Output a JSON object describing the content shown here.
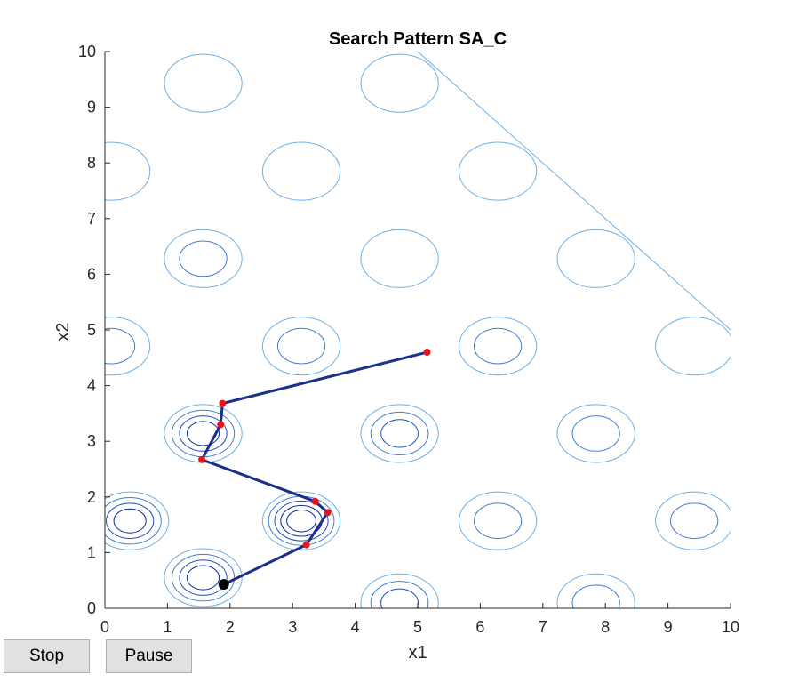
{
  "chart_data": {
    "type": "line",
    "title": "Search Pattern SA_C",
    "xlabel": "x1",
    "ylabel": "x2",
    "xlim": [
      0,
      10
    ],
    "ylim": [
      0,
      10
    ],
    "xticks": [
      "0",
      "1",
      "2",
      "3",
      "4",
      "5",
      "6",
      "7",
      "8",
      "9",
      "10"
    ],
    "yticks": [
      "0",
      "1",
      "2",
      "3",
      "4",
      "5",
      "6",
      "7",
      "8",
      "9",
      "10"
    ],
    "grid": false,
    "background_contours": {
      "colormap": [
        "#6fb0e8",
        "#3f7fd0",
        "#1f4fb4",
        "#0b2a9a"
      ],
      "minima": [
        {
          "x": 1.57,
          "y": 9.43,
          "levels": 1
        },
        {
          "x": 4.71,
          "y": 9.43,
          "levels": 1
        },
        {
          "x": 3.14,
          "y": 7.85,
          "levels": 1
        },
        {
          "x": 6.28,
          "y": 7.85,
          "levels": 1
        },
        {
          "x": 1.57,
          "y": 6.28,
          "levels": 2
        },
        {
          "x": 4.71,
          "y": 6.28,
          "levels": 1
        },
        {
          "x": 7.85,
          "y": 6.28,
          "levels": 1
        },
        {
          "x": 3.14,
          "y": 4.71,
          "levels": 2
        },
        {
          "x": 6.28,
          "y": 4.71,
          "levels": 2
        },
        {
          "x": 9.42,
          "y": 4.71,
          "levels": 1
        },
        {
          "x": 1.57,
          "y": 3.14,
          "levels": 4
        },
        {
          "x": 4.71,
          "y": 3.14,
          "levels": 3
        },
        {
          "x": 7.85,
          "y": 3.14,
          "levels": 2
        },
        {
          "x": 3.14,
          "y": 1.57,
          "levels": 5
        },
        {
          "x": 6.28,
          "y": 1.57,
          "levels": 2
        },
        {
          "x": 9.42,
          "y": 1.57,
          "levels": 2
        },
        {
          "x": 4.71,
          "y": 0.1,
          "levels": 3
        },
        {
          "x": 7.85,
          "y": 0.1,
          "levels": 2
        },
        {
          "x": 1.57,
          "y": 0.55,
          "levels": 4
        },
        {
          "x": 0.1,
          "y": 7.85,
          "levels": 1
        },
        {
          "x": 0.1,
          "y": 4.71,
          "levels": 2
        },
        {
          "x": 0.4,
          "y": 1.57,
          "levels": 4
        }
      ],
      "constraint_line": [
        [
          5.0,
          10.0
        ],
        [
          10.0,
          5.0
        ]
      ]
    },
    "series": [
      {
        "color": "#1a2f8c",
        "marker_color": "#e8141c",
        "points": [
          {
            "x": 5.15,
            "y": 4.6
          },
          {
            "x": 1.88,
            "y": 3.68
          },
          {
            "x": 1.85,
            "y": 3.3
          },
          {
            "x": 1.55,
            "y": 2.67
          },
          {
            "x": 3.36,
            "y": 1.92
          },
          {
            "x": 3.56,
            "y": 1.72
          },
          {
            "x": 3.22,
            "y": 1.14
          },
          {
            "x": 1.9,
            "y": 0.43
          }
        ]
      }
    ],
    "current_point": {
      "x": 1.9,
      "y": 0.43,
      "color": "#000000"
    }
  },
  "controls": {
    "stop_label": "Stop",
    "pause_label": "Pause"
  }
}
